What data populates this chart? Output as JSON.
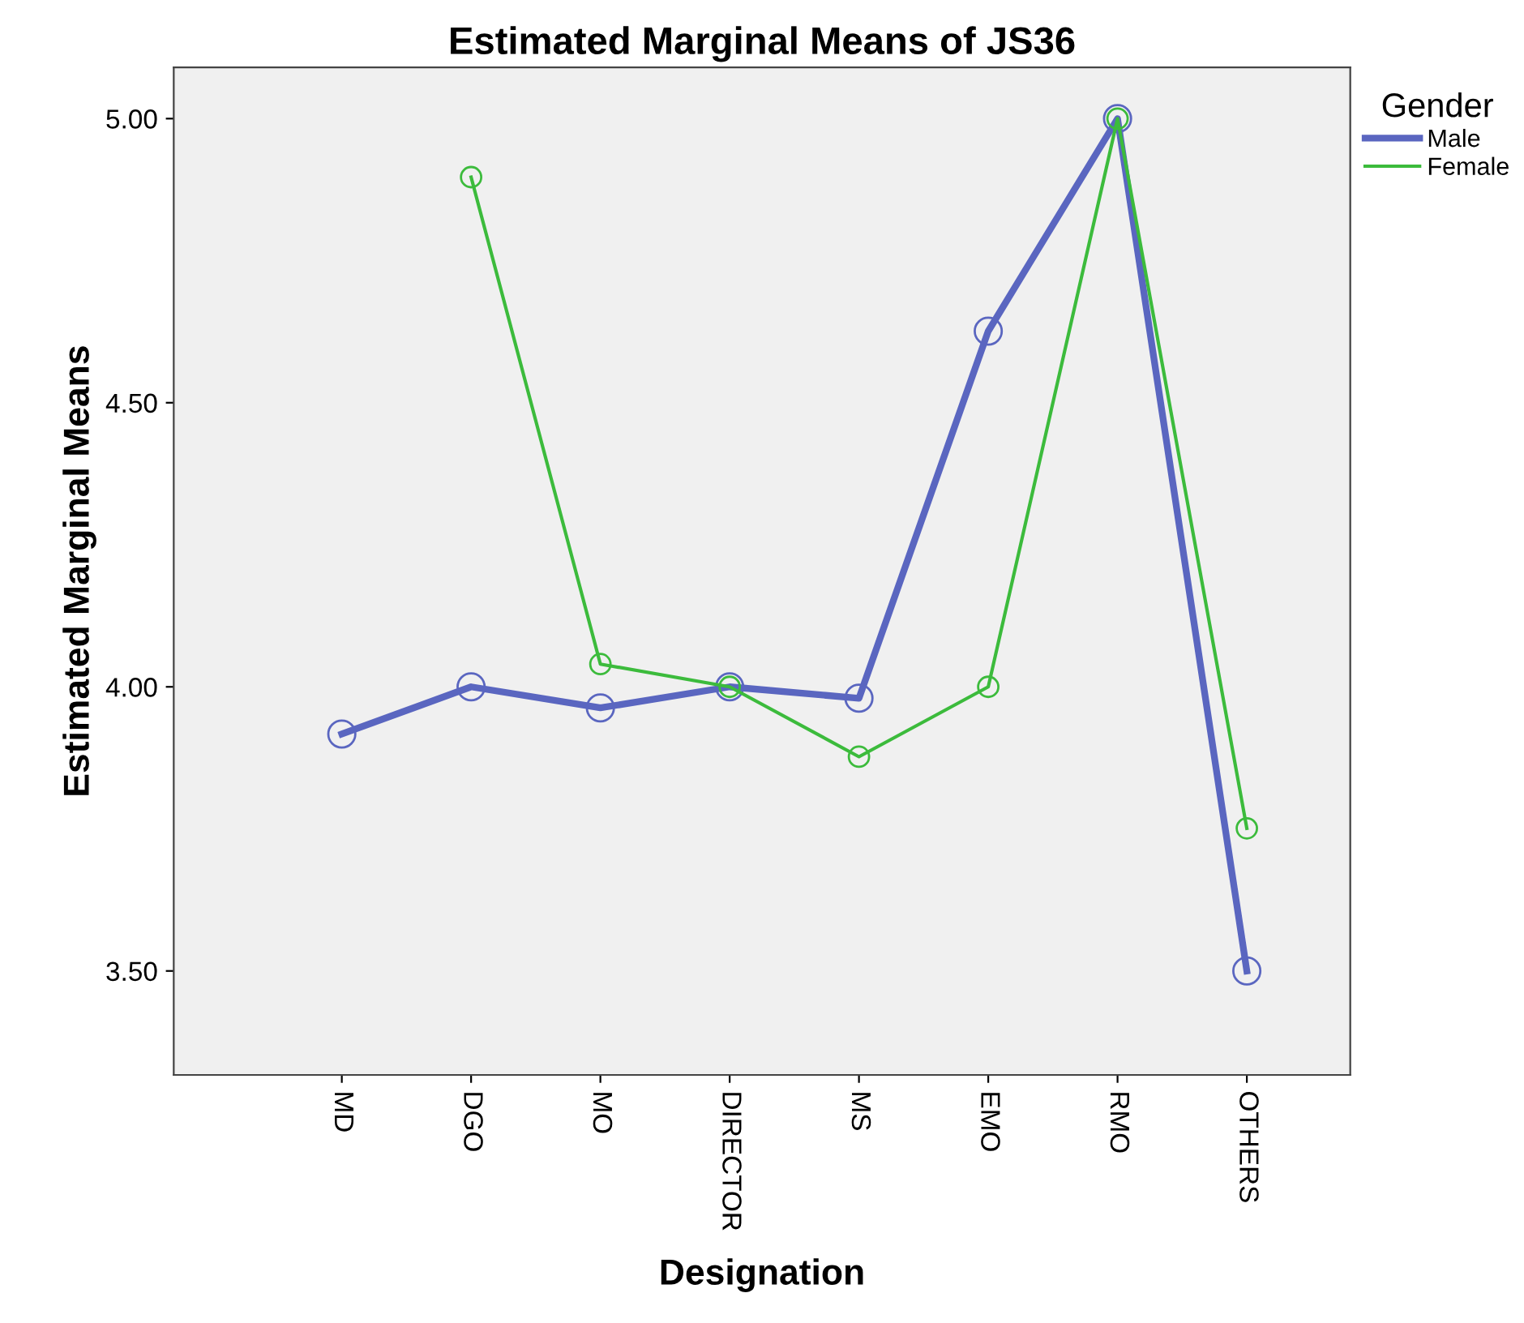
{
  "chart_data": {
    "type": "line",
    "title": "Estimated Marginal Means of JS36",
    "xlabel": "Designation",
    "ylabel": "Estimated Marginal Means",
    "legend_title": "Gender",
    "categories": [
      "MD",
      "DGO",
      "MO",
      "DIRECTOR",
      "MS",
      "EMO",
      "RMO",
      "OTHERS"
    ],
    "series": [
      {
        "name": "Male",
        "color": "#5a66c0",
        "values": [
          3.917,
          4.0,
          3.963,
          4.0,
          3.98,
          4.626,
          5.0,
          3.5
        ]
      },
      {
        "name": "Female",
        "color": "#3cbb3c",
        "values": [
          null,
          4.897,
          4.04,
          4.0,
          3.877,
          4.0,
          5.0,
          3.751
        ]
      }
    ],
    "ylim": [
      3.317,
      5.09
    ],
    "yticks": [
      {
        "value": 3.5,
        "label": "3.50"
      },
      {
        "value": 4.0,
        "label": "4.00"
      },
      {
        "value": 4.5,
        "label": "4.50"
      },
      {
        "value": 5.0,
        "label": "5.00"
      }
    ],
    "grid": false,
    "legend": "right",
    "marker": "circle",
    "line_style": "solid"
  }
}
